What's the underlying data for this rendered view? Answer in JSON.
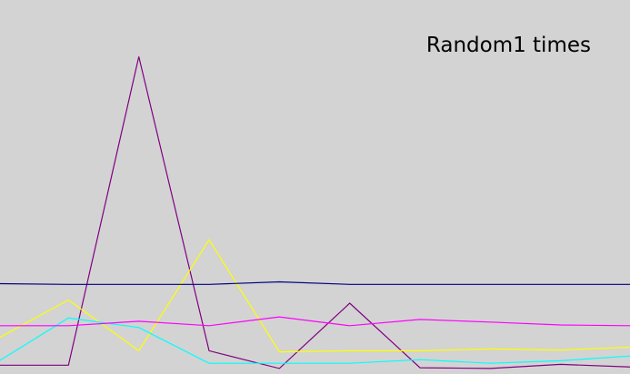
{
  "chart_data": {
    "type": "line",
    "title": "Random1 times",
    "xlabel": "",
    "ylabel": "",
    "x": [
      0,
      1,
      2,
      3,
      4,
      5,
      6,
      7,
      8,
      9
    ],
    "xlim": [
      0,
      9
    ],
    "ylim": [
      0,
      100
    ],
    "grid": false,
    "series": [
      {
        "color": "#800080",
        "values": [
          2.4,
          2.4,
          86.1,
          6.3,
          1.5,
          19.2,
          1.7,
          1.5,
          2.6,
          1.9
        ]
      },
      {
        "color": "#ffff00",
        "values": [
          9.7,
          20.1,
          6.3,
          36.4,
          6.0,
          6.3,
          6.3,
          6.8,
          6.5,
          7.3
        ]
      },
      {
        "color": "#00ffff",
        "values": [
          3.4,
          15.2,
          12.6,
          2.9,
          2.9,
          2.9,
          3.9,
          2.9,
          3.6,
          4.9
        ]
      },
      {
        "color": "#ff00ff",
        "values": [
          13.1,
          13.1,
          14.3,
          13.1,
          15.5,
          13.1,
          14.8,
          14.1,
          13.3,
          13.1
        ]
      },
      {
        "color": "#000080",
        "values": [
          24.5,
          24.3,
          24.3,
          24.3,
          25.0,
          24.3,
          24.3,
          24.3,
          24.3,
          24.3
        ]
      }
    ]
  }
}
